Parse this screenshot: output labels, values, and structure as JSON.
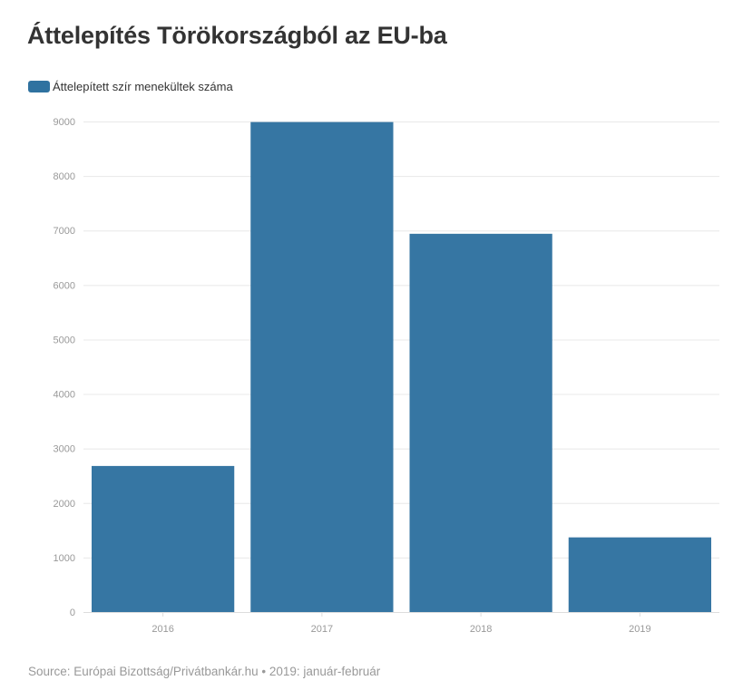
{
  "title": "Áttelepítés Törökországból az EU-ba",
  "source": "Source: Európai Bizottság/Privátbankár.hu • 2019: január-február",
  "colors": {
    "bar": "#2f72a0",
    "grid": "#e8e8e8",
    "axis": "#dddddd",
    "title": "#333333",
    "tick": "#999999"
  },
  "chart_data": {
    "type": "bar",
    "categories": [
      "2016",
      "2017",
      "2018",
      "2019"
    ],
    "series": [
      {
        "name": "Áttelepített szír menekültek száma",
        "values": [
          2680,
          8990,
          6940,
          1370
        ]
      }
    ],
    "ylim": [
      0,
      9000
    ],
    "yticks": [
      0,
      1000,
      2000,
      3000,
      4000,
      5000,
      6000,
      7000,
      8000,
      9000
    ],
    "grid": true,
    "legend": "top-left",
    "xlabel": "",
    "ylabel": ""
  }
}
